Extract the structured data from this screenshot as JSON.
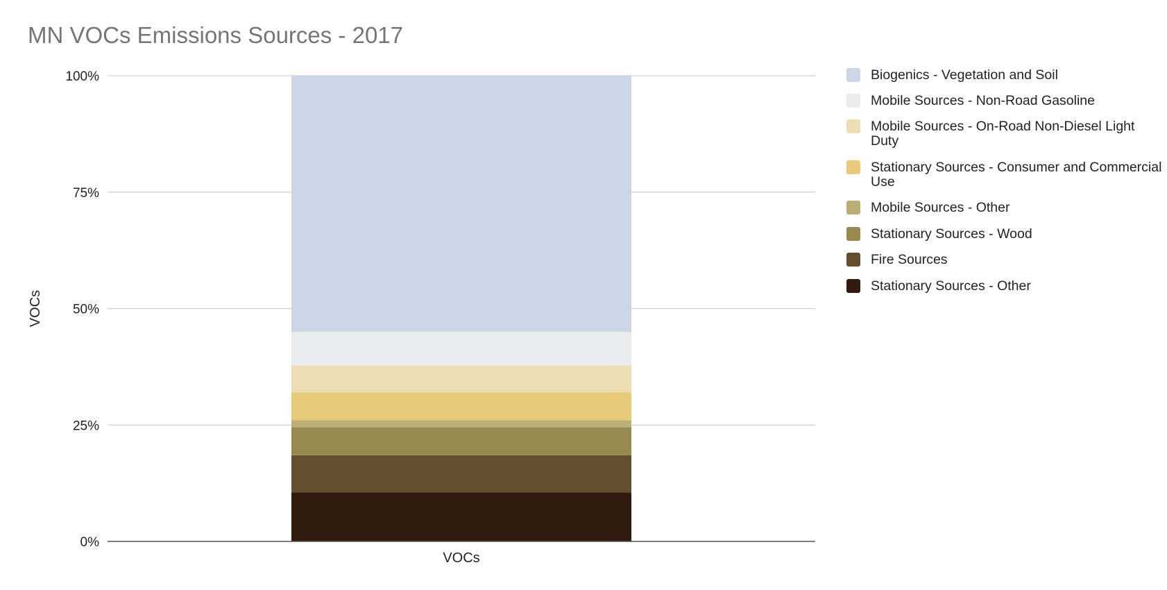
{
  "chart_data": {
    "type": "bar",
    "stacked": "percent",
    "title": "MN VOCs Emissions Sources - 2017",
    "xlabel": "",
    "ylabel": "VOCs",
    "categories": [
      "VOCs"
    ],
    "ylim": [
      0,
      100
    ],
    "yticks": [
      "0%",
      "25%",
      "50%",
      "75%",
      "100%"
    ],
    "grid": true,
    "legend_position": "right",
    "series": [
      {
        "name": "Stationary Sources - Other",
        "color": "#311a0f",
        "values": [
          10.5
        ]
      },
      {
        "name": "Fire Sources",
        "color": "#644e30",
        "values": [
          8.0
        ]
      },
      {
        "name": "Stationary Sources - Wood",
        "color": "#978a50",
        "values": [
          6.0
        ]
      },
      {
        "name": "Mobile Sources - Other",
        "color": "#bcae76",
        "values": [
          1.5
        ]
      },
      {
        "name": "Stationary Sources - Consumer and Commercial Use",
        "color": "#e8ca7b",
        "values": [
          6.0
        ]
      },
      {
        "name": "Mobile Sources - On-Road Non-Diesel Light Duty",
        "color": "#eedcb3",
        "values": [
          5.8
        ]
      },
      {
        "name": "Mobile Sources - Non-Road Gasoline",
        "color": "#eaebed",
        "values": [
          7.2
        ]
      },
      {
        "name": "Biogenics - Vegetation and Soil",
        "color": "#cdd6e4",
        "values": [
          55.0
        ]
      }
    ],
    "legend_order": [
      "Biogenics - Vegetation and Soil",
      "Mobile Sources - Non-Road Gasoline",
      "Mobile Sources - On-Road Non-Diesel Light Duty",
      "Stationary Sources - Consumer and Commercial Use",
      "Mobile Sources - Other",
      "Stationary Sources - Wood",
      "Fire Sources",
      "Stationary Sources - Other"
    ]
  }
}
